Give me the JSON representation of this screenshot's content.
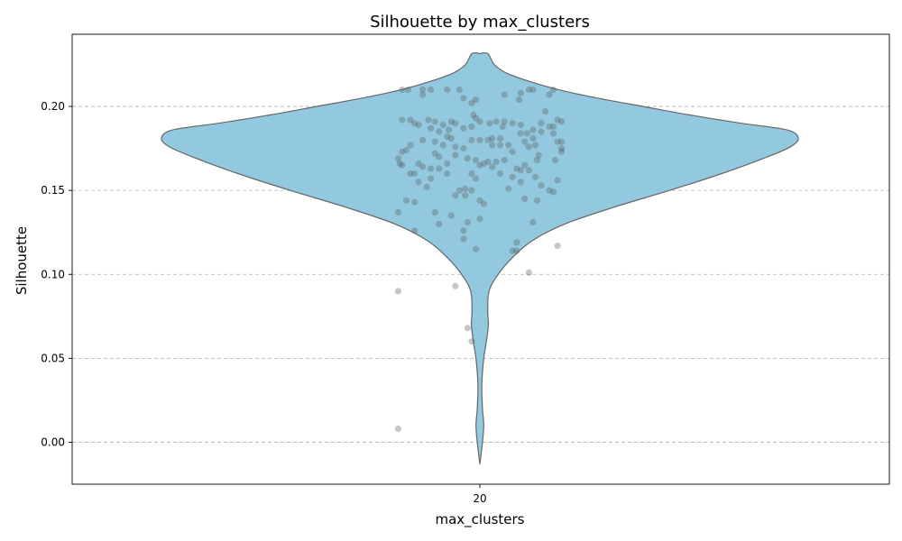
{
  "chart_data": {
    "type": "violin",
    "title": "Silhouette by max_clusters",
    "xlabel": "max_clusters",
    "ylabel": "Silhouette",
    "categories": [
      "20"
    ],
    "ylim": [
      -0.025,
      0.243
    ],
    "yticks": [
      0.0,
      0.05,
      0.1,
      0.15,
      0.2
    ],
    "ytick_labels": [
      "0.00",
      "0.05",
      "0.10",
      "0.15",
      "0.20"
    ],
    "grid": "y-dashed",
    "colors": {
      "violin_fill": "#92c9df",
      "violin_edge": "#666666",
      "points": "#555555"
    },
    "density_profile": [
      {
        "y": -0.013,
        "w": 0.0
      },
      {
        "y": 0.0,
        "w": 0.004
      },
      {
        "y": 0.01,
        "w": 0.006
      },
      {
        "y": 0.02,
        "w": 0.004
      },
      {
        "y": 0.035,
        "w": 0.003
      },
      {
        "y": 0.05,
        "w": 0.006
      },
      {
        "y": 0.06,
        "w": 0.01
      },
      {
        "y": 0.07,
        "w": 0.013
      },
      {
        "y": 0.078,
        "w": 0.012
      },
      {
        "y": 0.09,
        "w": 0.014
      },
      {
        "y": 0.1,
        "w": 0.028
      },
      {
        "y": 0.11,
        "w": 0.05
      },
      {
        "y": 0.12,
        "w": 0.08
      },
      {
        "y": 0.13,
        "w": 0.13
      },
      {
        "y": 0.14,
        "w": 0.205
      },
      {
        "y": 0.15,
        "w": 0.29
      },
      {
        "y": 0.16,
        "w": 0.37
      },
      {
        "y": 0.17,
        "w": 0.44
      },
      {
        "y": 0.176,
        "w": 0.475
      },
      {
        "y": 0.181,
        "w": 0.487
      },
      {
        "y": 0.186,
        "w": 0.47
      },
      {
        "y": 0.19,
        "w": 0.4
      },
      {
        "y": 0.195,
        "w": 0.32
      },
      {
        "y": 0.2,
        "w": 0.25
      },
      {
        "y": 0.205,
        "w": 0.18
      },
      {
        "y": 0.21,
        "w": 0.12
      },
      {
        "y": 0.215,
        "w": 0.075
      },
      {
        "y": 0.22,
        "w": 0.04
      },
      {
        "y": 0.225,
        "w": 0.022
      },
      {
        "y": 0.2315,
        "w": 0.012
      },
      {
        "y": 0.2315,
        "w": 0.0
      }
    ],
    "points": [
      {
        "x": -0.095,
        "y": 0.21
      },
      {
        "x": -0.088,
        "y": 0.21
      },
      {
        "x": -0.07,
        "y": 0.21
      },
      {
        "x": -0.06,
        "y": 0.21
      },
      {
        "x": -0.04,
        "y": 0.21
      },
      {
        "x": -0.025,
        "y": 0.21
      },
      {
        "x": 0.06,
        "y": 0.21
      },
      {
        "x": 0.065,
        "y": 0.21
      },
      {
        "x": 0.09,
        "y": 0.21
      },
      {
        "x": -0.07,
        "y": 0.207
      },
      {
        "x": 0.03,
        "y": 0.207
      },
      {
        "x": 0.05,
        "y": 0.208
      },
      {
        "x": 0.085,
        "y": 0.207
      },
      {
        "x": -0.02,
        "y": 0.205
      },
      {
        "x": -0.005,
        "y": 0.204
      },
      {
        "x": 0.048,
        "y": 0.204
      },
      {
        "x": -0.01,
        "y": 0.202
      },
      {
        "x": 0.08,
        "y": 0.197
      },
      {
        "x": -0.008,
        "y": 0.195
      },
      {
        "x": -0.005,
        "y": 0.193
      },
      {
        "x": -0.095,
        "y": 0.192
      },
      {
        "x": -0.085,
        "y": 0.192
      },
      {
        "x": -0.063,
        "y": 0.192
      },
      {
        "x": -0.055,
        "y": 0.191
      },
      {
        "x": -0.035,
        "y": 0.191
      },
      {
        "x": -0.03,
        "y": 0.19
      },
      {
        "x": 0.0,
        "y": 0.191
      },
      {
        "x": 0.02,
        "y": 0.191
      },
      {
        "x": 0.03,
        "y": 0.191
      },
      {
        "x": 0.04,
        "y": 0.19
      },
      {
        "x": 0.075,
        "y": 0.19
      },
      {
        "x": 0.095,
        "y": 0.192
      },
      {
        "x": 0.1,
        "y": 0.191
      },
      {
        "x": -0.08,
        "y": 0.19
      },
      {
        "x": -0.075,
        "y": 0.189
      },
      {
        "x": -0.045,
        "y": 0.189
      },
      {
        "x": 0.012,
        "y": 0.19
      },
      {
        "x": 0.05,
        "y": 0.189
      },
      {
        "x": 0.085,
        "y": 0.188
      },
      {
        "x": 0.09,
        "y": 0.188
      },
      {
        "x": -0.06,
        "y": 0.187
      },
      {
        "x": -0.02,
        "y": 0.187
      },
      {
        "x": -0.01,
        "y": 0.188
      },
      {
        "x": 0.028,
        "y": 0.188
      },
      {
        "x": -0.038,
        "y": 0.186
      },
      {
        "x": 0.065,
        "y": 0.186
      },
      {
        "x": 0.075,
        "y": 0.185
      },
      {
        "x": -0.05,
        "y": 0.185
      },
      {
        "x": 0.05,
        "y": 0.184
      },
      {
        "x": 0.058,
        "y": 0.184
      },
      {
        "x": 0.09,
        "y": 0.184
      },
      {
        "x": -0.04,
        "y": 0.182
      },
      {
        "x": -0.035,
        "y": 0.181
      },
      {
        "x": 0.015,
        "y": 0.181
      },
      {
        "x": 0.025,
        "y": 0.181
      },
      {
        "x": 0.065,
        "y": 0.181
      },
      {
        "x": -0.01,
        "y": 0.18
      },
      {
        "x": 0.0,
        "y": 0.18
      },
      {
        "x": 0.01,
        "y": 0.18
      },
      {
        "x": -0.07,
        "y": 0.18
      },
      {
        "x": -0.055,
        "y": 0.179
      },
      {
        "x": 0.055,
        "y": 0.179
      },
      {
        "x": 0.095,
        "y": 0.179
      },
      {
        "x": 0.1,
        "y": 0.179
      },
      {
        "x": -0.085,
        "y": 0.177
      },
      {
        "x": -0.045,
        "y": 0.177
      },
      {
        "x": 0.015,
        "y": 0.177
      },
      {
        "x": 0.025,
        "y": 0.177
      },
      {
        "x": 0.035,
        "y": 0.177
      },
      {
        "x": 0.068,
        "y": 0.177
      },
      {
        "x": -0.03,
        "y": 0.176
      },
      {
        "x": -0.02,
        "y": 0.175
      },
      {
        "x": 0.06,
        "y": 0.176
      },
      {
        "x": 0.1,
        "y": 0.175
      },
      {
        "x": -0.09,
        "y": 0.174
      },
      {
        "x": -0.095,
        "y": 0.173
      },
      {
        "x": 0.04,
        "y": 0.173
      },
      {
        "x": 0.1,
        "y": 0.173
      },
      {
        "x": -0.055,
        "y": 0.172
      },
      {
        "x": -0.03,
        "y": 0.171
      },
      {
        "x": 0.072,
        "y": 0.171
      },
      {
        "x": -0.1,
        "y": 0.169
      },
      {
        "x": -0.05,
        "y": 0.17
      },
      {
        "x": -0.015,
        "y": 0.169
      },
      {
        "x": -0.005,
        "y": 0.168
      },
      {
        "x": 0.03,
        "y": 0.168
      },
      {
        "x": 0.07,
        "y": 0.168
      },
      {
        "x": 0.092,
        "y": 0.168
      },
      {
        "x": 0.01,
        "y": 0.167
      },
      {
        "x": 0.02,
        "y": 0.167
      },
      {
        "x": -0.098,
        "y": 0.166
      },
      {
        "x": -0.075,
        "y": 0.166
      },
      {
        "x": -0.04,
        "y": 0.166
      },
      {
        "x": 0.0,
        "y": 0.165
      },
      {
        "x": 0.005,
        "y": 0.166
      },
      {
        "x": 0.055,
        "y": 0.165
      },
      {
        "x": -0.095,
        "y": 0.165
      },
      {
        "x": -0.07,
        "y": 0.164
      },
      {
        "x": -0.05,
        "y": 0.163
      },
      {
        "x": -0.06,
        "y": 0.163
      },
      {
        "x": 0.015,
        "y": 0.164
      },
      {
        "x": 0.045,
        "y": 0.163
      },
      {
        "x": 0.05,
        "y": 0.162
      },
      {
        "x": 0.06,
        "y": 0.162
      },
      {
        "x": -0.04,
        "y": 0.16
      },
      {
        "x": -0.08,
        "y": 0.16
      },
      {
        "x": -0.085,
        "y": 0.16
      },
      {
        "x": -0.01,
        "y": 0.16
      },
      {
        "x": 0.025,
        "y": 0.16
      },
      {
        "x": 0.04,
        "y": 0.158
      },
      {
        "x": 0.068,
        "y": 0.158
      },
      {
        "x": -0.06,
        "y": 0.157
      },
      {
        "x": -0.005,
        "y": 0.157
      },
      {
        "x": 0.095,
        "y": 0.156
      },
      {
        "x": -0.075,
        "y": 0.155
      },
      {
        "x": 0.05,
        "y": 0.155
      },
      {
        "x": 0.075,
        "y": 0.153
      },
      {
        "x": -0.065,
        "y": 0.152
      },
      {
        "x": 0.035,
        "y": 0.151
      },
      {
        "x": 0.085,
        "y": 0.15
      },
      {
        "x": -0.018,
        "y": 0.151
      },
      {
        "x": -0.01,
        "y": 0.15
      },
      {
        "x": -0.025,
        "y": 0.15
      },
      {
        "x": 0.09,
        "y": 0.149
      },
      {
        "x": -0.03,
        "y": 0.147
      },
      {
        "x": -0.018,
        "y": 0.147
      },
      {
        "x": 0.055,
        "y": 0.145
      },
      {
        "x": 0.07,
        "y": 0.144
      },
      {
        "x": -0.09,
        "y": 0.144
      },
      {
        "x": -0.08,
        "y": 0.143
      },
      {
        "x": 0.0,
        "y": 0.144
      },
      {
        "x": 0.005,
        "y": 0.142
      },
      {
        "x": -0.1,
        "y": 0.137
      },
      {
        "x": -0.055,
        "y": 0.137
      },
      {
        "x": -0.035,
        "y": 0.135
      },
      {
        "x": 0.0,
        "y": 0.133
      },
      {
        "x": -0.015,
        "y": 0.131
      },
      {
        "x": 0.065,
        "y": 0.131
      },
      {
        "x": -0.05,
        "y": 0.13
      },
      {
        "x": -0.08,
        "y": 0.126
      },
      {
        "x": -0.02,
        "y": 0.126
      },
      {
        "x": -0.02,
        "y": 0.121
      },
      {
        "x": 0.045,
        "y": 0.119
      },
      {
        "x": 0.095,
        "y": 0.117
      },
      {
        "x": -0.005,
        "y": 0.115
      },
      {
        "x": 0.04,
        "y": 0.114
      },
      {
        "x": 0.045,
        "y": 0.114
      },
      {
        "x": 0.06,
        "y": 0.101
      },
      {
        "x": -0.03,
        "y": 0.093
      },
      {
        "x": -0.1,
        "y": 0.09
      },
      {
        "x": -0.015,
        "y": 0.068
      },
      {
        "x": -0.01,
        "y": 0.06
      },
      {
        "x": -0.1,
        "y": 0.008
      }
    ]
  }
}
